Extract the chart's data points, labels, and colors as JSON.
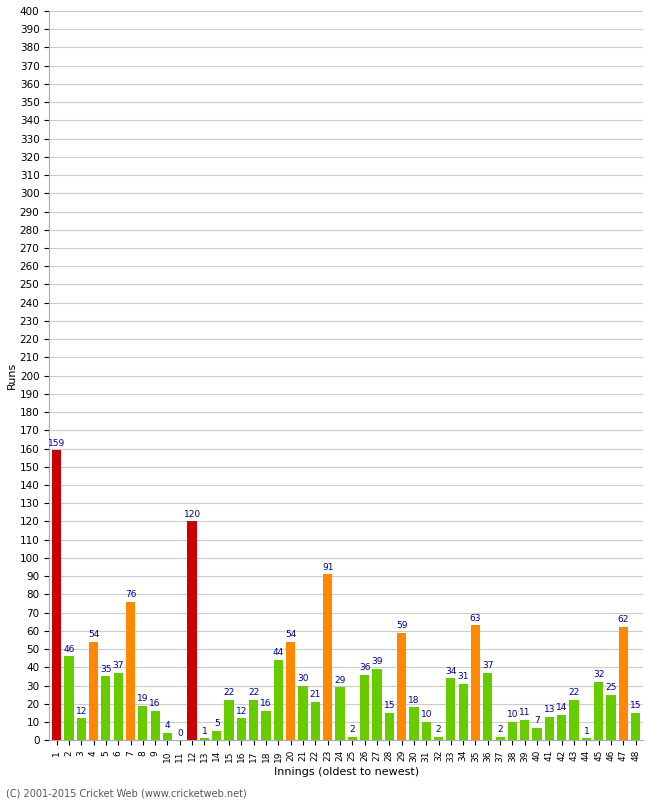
{
  "xlabel": "Innings (oldest to newest)",
  "ylabel": "Runs",
  "footer": "(C) 2001-2015 Cricket Web (www.cricketweb.net)",
  "ylim": [
    0,
    400
  ],
  "yticks": [
    0,
    10,
    20,
    30,
    40,
    50,
    60,
    70,
    80,
    90,
    100,
    110,
    120,
    130,
    140,
    150,
    160,
    170,
    180,
    190,
    200,
    210,
    220,
    230,
    240,
    250,
    260,
    270,
    280,
    290,
    300,
    310,
    320,
    330,
    340,
    350,
    360,
    370,
    380,
    390,
    400
  ],
  "innings": [
    1,
    2,
    3,
    4,
    5,
    6,
    7,
    8,
    9,
    10,
    11,
    12,
    13,
    14,
    15,
    16,
    17,
    18,
    19,
    20,
    21,
    22,
    23,
    24,
    25,
    26,
    27,
    28,
    29,
    30,
    31,
    32,
    33,
    34,
    35,
    36,
    37,
    38,
    39,
    40,
    41,
    42,
    43,
    44,
    45,
    46,
    47,
    48
  ],
  "values": [
    159,
    46,
    12,
    54,
    35,
    37,
    76,
    19,
    16,
    4,
    0,
    120,
    1,
    5,
    22,
    12,
    22,
    16,
    44,
    54,
    30,
    21,
    91,
    29,
    2,
    36,
    39,
    15,
    59,
    18,
    10,
    2,
    34,
    31,
    63,
    37,
    2,
    10,
    11,
    7,
    13,
    14,
    22,
    1,
    32,
    25,
    62,
    15
  ],
  "colors": [
    "red",
    "green",
    "green",
    "orange",
    "green",
    "green",
    "orange",
    "green",
    "green",
    "green",
    "green",
    "red",
    "green",
    "green",
    "green",
    "green",
    "green",
    "green",
    "green",
    "orange",
    "green",
    "green",
    "orange",
    "green",
    "green",
    "green",
    "green",
    "green",
    "orange",
    "green",
    "green",
    "green",
    "green",
    "green",
    "orange",
    "green",
    "green",
    "green",
    "green",
    "green",
    "green",
    "green",
    "green",
    "green",
    "green",
    "green",
    "orange",
    "green"
  ],
  "color_map": {
    "red": "#cc0000",
    "orange": "#ff8800",
    "green": "#66cc00"
  },
  "background_color": "#ffffff",
  "grid_color": "#cccccc",
  "label_color": "#000099",
  "label_fontsize": 6.5,
  "bar_width": 0.75,
  "dpi": 100,
  "fig_width": 6.5,
  "fig_height": 8.0
}
